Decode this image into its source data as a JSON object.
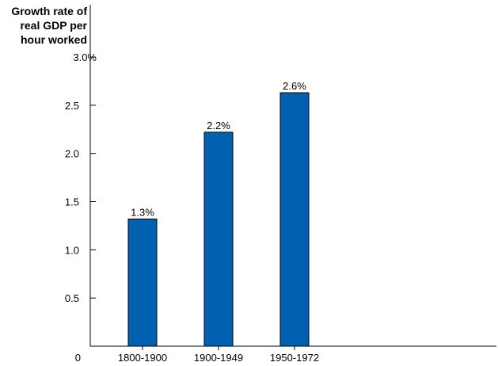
{
  "chart_data": {
    "type": "bar",
    "ylabel_lines": [
      "Growth rate of",
      "real GDP per",
      "hour worked"
    ],
    "xlabel": "",
    "categories": [
      "1800-1900",
      "1900-1949",
      "1950-1972"
    ],
    "values": [
      1.32,
      2.22,
      2.63
    ],
    "data_labels": [
      "1.3%",
      "2.2%",
      "2.6%"
    ],
    "ylim": [
      0,
      3.0
    ],
    "yticks": [
      0.5,
      1.0,
      1.5,
      2.0,
      2.5,
      3.0
    ],
    "ytick_labels": [
      "0.5",
      "1.0",
      "1.5",
      "2.0",
      "2.5",
      "3.0%"
    ],
    "zero_label": "0",
    "grid": false,
    "bar_color": "#0061b1"
  }
}
